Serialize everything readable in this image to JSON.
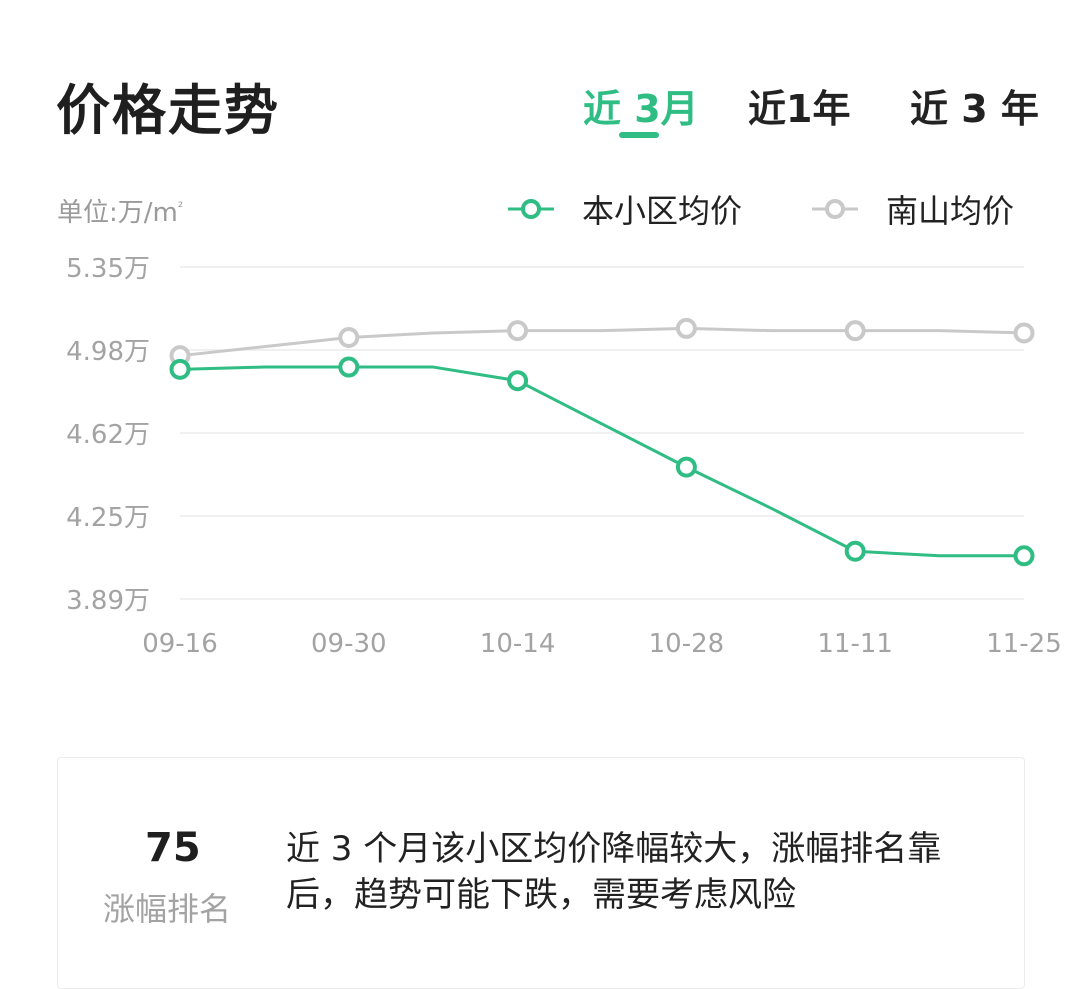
{
  "header": {
    "title": "价格走势"
  },
  "tabs": [
    {
      "label": "近 3月",
      "active": true
    },
    {
      "label": "近1年",
      "active": false
    },
    {
      "label": "近 3 年",
      "active": false
    }
  ],
  "unit_label": "单位:万/m",
  "unit_sup": "²",
  "colors": {
    "accent": "#2fbd84",
    "secondary": "#c9c9c9",
    "grid": "#ececec",
    "axis_text": "#a3a3a3"
  },
  "chart_data": {
    "type": "line",
    "x": [
      "09-16",
      "09-23",
      "09-30",
      "10-07",
      "10-14",
      "10-21",
      "10-28",
      "11-04",
      "11-11",
      "11-18",
      "11-25"
    ],
    "x_tick_labels": [
      "09-16",
      "09-30",
      "10-14",
      "10-28",
      "11-11",
      "11-25"
    ],
    "y_ticks": [
      "5.35万",
      "4.98万",
      "4.62万",
      "4.25万",
      "3.89万"
    ],
    "ylim": [
      3.89,
      5.35
    ],
    "grid": true,
    "legend_position": "top-right",
    "series": [
      {
        "name": "本小区均价",
        "color": "#2fbd84",
        "values": [
          4.9,
          4.91,
          4.91,
          4.91,
          4.85,
          4.66,
          4.47,
          4.29,
          4.1,
          4.08,
          4.08
        ],
        "markers": [
          true,
          false,
          true,
          false,
          true,
          false,
          true,
          false,
          true,
          false,
          true
        ]
      },
      {
        "name": "南山均价",
        "color": "#c9c9c9",
        "values": [
          4.96,
          5.0,
          5.04,
          5.06,
          5.07,
          5.07,
          5.08,
          5.07,
          5.07,
          5.07,
          5.06
        ],
        "markers": [
          true,
          false,
          true,
          false,
          true,
          false,
          true,
          false,
          true,
          false,
          true
        ]
      }
    ]
  },
  "summary": {
    "rank_value": "75",
    "rank_label": "涨幅排名",
    "text": "近 3 个月该小区均价降幅较大，涨幅排名靠后，趋势可能下跌，需要考虑风险"
  }
}
